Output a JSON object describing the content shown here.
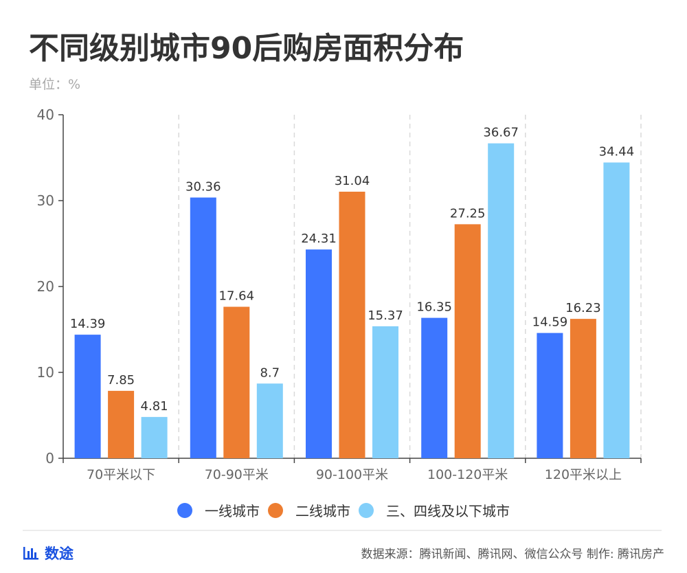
{
  "header": {
    "title": "不同级别城市90后购房面积分布",
    "unit": "单位：%"
  },
  "chart_data": {
    "type": "bar",
    "title": "不同级别城市90后购房面积分布",
    "ylabel": "单位：%",
    "xlabel": "",
    "ylim": [
      0,
      40
    ],
    "yticks": [
      0,
      10,
      20,
      30,
      40
    ],
    "grid": "vertical dashed separators between categories",
    "legend_position": "bottom",
    "categories": [
      "70平米以下",
      "70-90平米",
      "90-100平米",
      "100-120平米",
      "120平米以上"
    ],
    "series": [
      {
        "name": "一线城市",
        "color": "#3D76FF",
        "values": [
          14.39,
          30.36,
          24.31,
          16.35,
          14.59
        ]
      },
      {
        "name": "二线城市",
        "color": "#ED7D31",
        "values": [
          7.85,
          17.64,
          31.04,
          27.25,
          16.23
        ]
      },
      {
        "name": "三、四线及以下城市",
        "color": "#82CFFA",
        "values": [
          4.81,
          8.7,
          15.37,
          36.67,
          34.44
        ]
      }
    ]
  },
  "footer": {
    "brand": "数途",
    "brand_icon": "bar-chart-icon",
    "source": "数据来源：腾讯新闻、腾讯网、微信公众号 制作: 腾讯房产"
  }
}
